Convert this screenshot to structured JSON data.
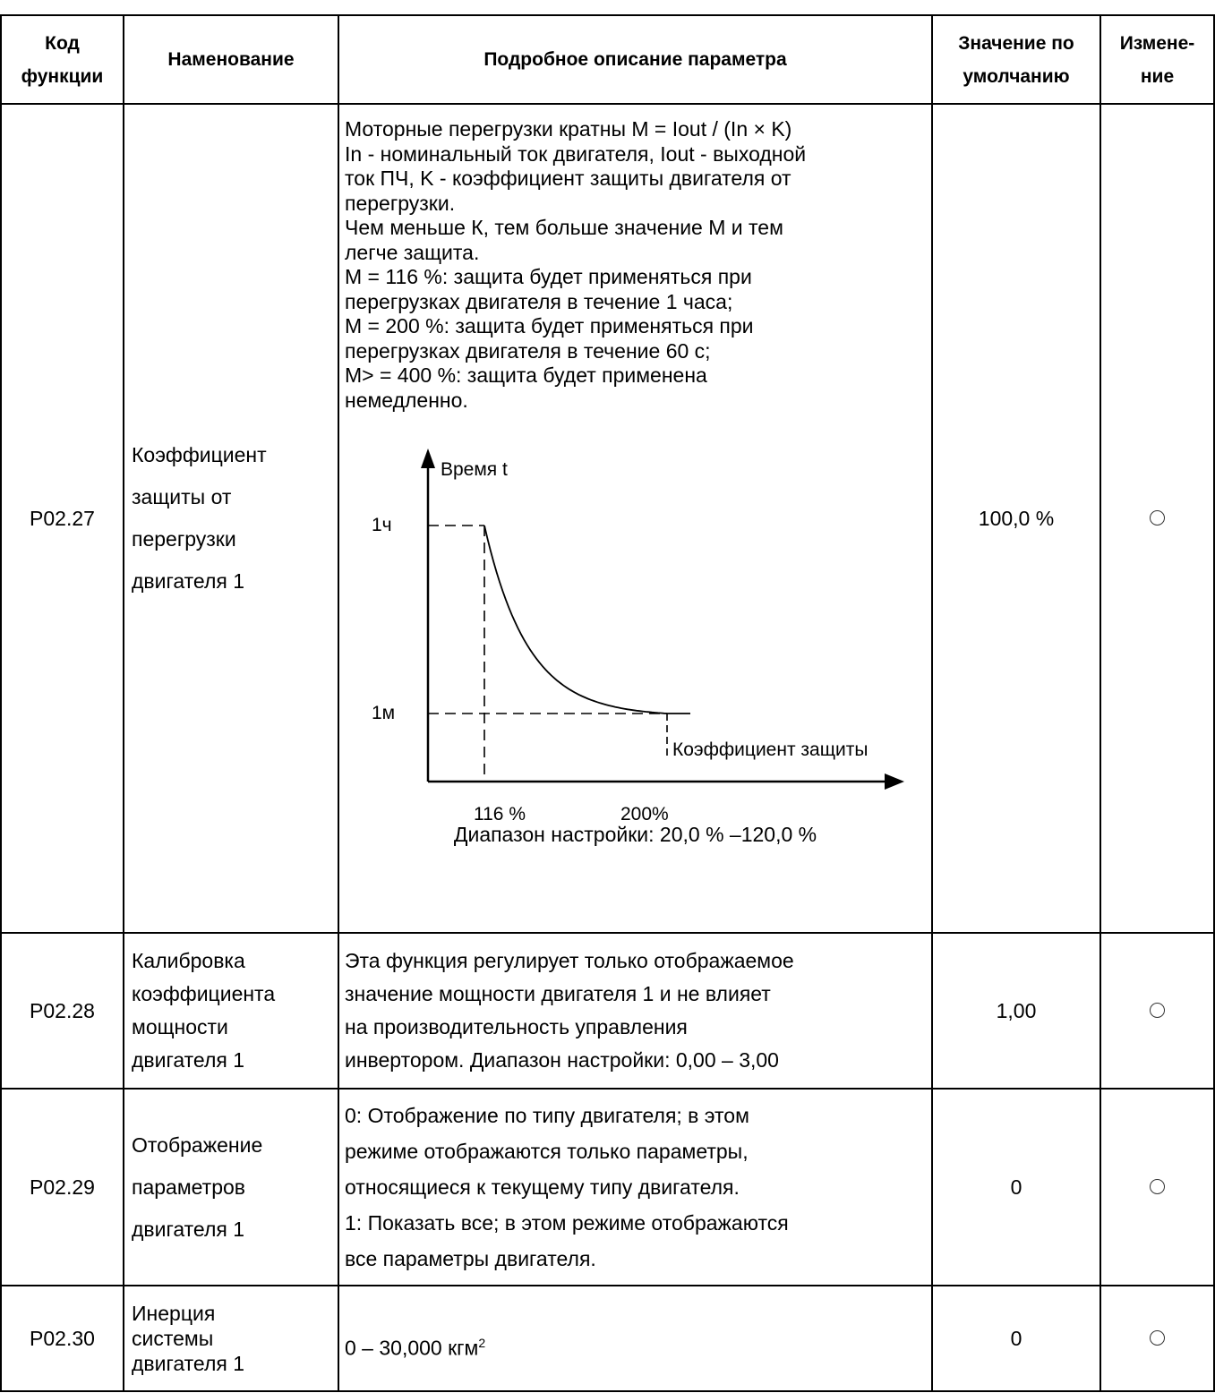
{
  "headers": {
    "code": [
      "Код",
      "функции"
    ],
    "name": "Наменование",
    "desc": "Подробное описание параметра",
    "default": [
      "Значение по",
      "умолчанию"
    ],
    "change": [
      "Измене-",
      "ние"
    ]
  },
  "rows": [
    {
      "code": "P02.27",
      "name": [
        "Коэффициент",
        "защиты от",
        "перегрузки",
        "двигателя 1"
      ],
      "desc": [
        "Моторные перегрузки кратны M = Iout / (In × K)",
        "In - номинальный ток двигателя, Iout - выходной",
        "ток ПЧ, K - коэффициент защиты двигателя от",
        "перегрузки.",
        "Чем меньше К, тем больше значение M и тем",
        "легче защита.",
        "M = 116 %: защита будет применяться при",
        "перегрузках двигателя в течение 1 часа;",
        "M = 200 %: защита будет применяться при",
        "перегрузках двигателя в течение 60 с;",
        "M> = 400 %: защита будет применена",
        "немедленно."
      ],
      "range": "Диапазон настройки: 20,0 % –120,0 %",
      "default": "100,0 %",
      "change": "○"
    },
    {
      "code": "P02.28",
      "name": [
        "Калибровка",
        "коэффициента",
        "мощности",
        "двигателя 1"
      ],
      "desc": [
        "Эта функция регулирует только отображаемое",
        "значение мощности двигателя 1 и не влияет",
        "на производительность управления",
        "инвертором. Диапазон настройки: 0,00 – 3,00"
      ],
      "default": "1,00",
      "change": "○"
    },
    {
      "code": "P02.29",
      "name": [
        "Отображение",
        "параметров",
        "двигателя 1"
      ],
      "desc": [
        "0: Отображение по типу двигателя; в этом",
        "режиме отображаются только параметры,",
        "относящиеся к текущему типу двигателя.",
        "1: Показать все; в этом режиме отображаются",
        "все параметры двигателя."
      ],
      "default": "0",
      "change": "○"
    },
    {
      "code": "P02.30",
      "name": [
        "Инерция",
        "системы",
        "двигателя 1"
      ],
      "desc_main": "0 – 30,000 кгм",
      "desc_sup": "2",
      "default": "0",
      "change": "○"
    }
  ],
  "chart_data": {
    "type": "line",
    "title": "",
    "ylabel": "Время t",
    "xlabel": "Коэффициент защиты",
    "y_ticks": [
      "1ч",
      "1м"
    ],
    "x_ticks": [
      "116 %",
      "200%"
    ],
    "series": [
      {
        "x": [
          "116 %",
          "200%"
        ],
        "y": [
          "1ч",
          "1м"
        ]
      }
    ],
    "grid": false,
    "note": ""
  }
}
